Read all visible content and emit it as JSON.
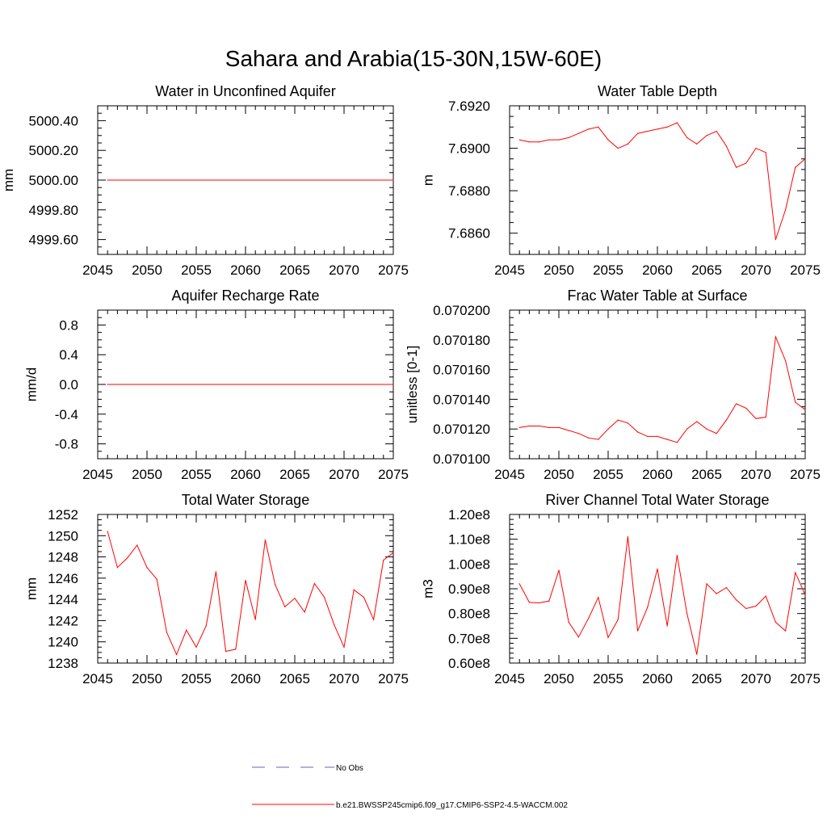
{
  "title": "Sahara and Arabia(15-30N,15W-60E)",
  "colors": {
    "model": "#ff0000",
    "obs": "#6666bb",
    "axis": "#000000"
  },
  "legend": {
    "obs_label": "No Obs",
    "model_label": "b.e21.BWSSP245cmip6.f09_g17.CMIP6-SSP2-4.5-WACCM.002"
  },
  "chart_data": [
    {
      "type": "line",
      "title": "Water in Unconfined Aquifer",
      "ylabel": "mm",
      "xlim": [
        2045,
        2075
      ],
      "ylim": [
        4999.5,
        5000.5
      ],
      "xticks": [
        2045,
        2050,
        2055,
        2060,
        2065,
        2070,
        2075
      ],
      "yticks": [
        4999.6,
        4999.8,
        5000.0,
        5000.2,
        5000.4
      ],
      "ytick_labels": [
        "4999.60",
        "4999.80",
        "5000.00",
        "5000.20",
        "5000.40"
      ],
      "x_minor_step": 1,
      "y_minor_step": 0.05,
      "x": [
        2046,
        2075
      ],
      "y": [
        5000.0,
        5000.0
      ]
    },
    {
      "type": "line",
      "title": "Water Table Depth",
      "ylabel": "m",
      "xlim": [
        2045,
        2075
      ],
      "ylim": [
        7.685,
        7.692
      ],
      "xticks": [
        2045,
        2050,
        2055,
        2060,
        2065,
        2070,
        2075
      ],
      "yticks": [
        7.686,
        7.688,
        7.69,
        7.692
      ],
      "ytick_labels": [
        "7.6860",
        "7.6880",
        "7.6900",
        "7.6920"
      ],
      "x_minor_step": 1,
      "y_minor_step": 0.0005,
      "x": [
        2046,
        2047,
        2048,
        2049,
        2050,
        2051,
        2052,
        2053,
        2054,
        2055,
        2056,
        2057,
        2058,
        2059,
        2060,
        2061,
        2062,
        2063,
        2064,
        2065,
        2066,
        2067,
        2068,
        2069,
        2070,
        2071,
        2072,
        2073,
        2074,
        2075
      ],
      "y": [
        7.6904,
        7.6903,
        7.6903,
        7.6904,
        7.6904,
        7.6905,
        7.6907,
        7.6909,
        7.691,
        7.6904,
        7.69,
        7.6902,
        7.6907,
        7.6908,
        7.6909,
        7.691,
        7.6912,
        7.6905,
        7.6902,
        7.6906,
        7.6908,
        7.6901,
        7.6891,
        7.6893,
        7.69,
        7.6898,
        7.6857,
        7.6871,
        7.6891,
        7.6895
      ]
    },
    {
      "type": "line",
      "title": "Aquifer Recharge Rate",
      "ylabel": "mm/d",
      "xlim": [
        2045,
        2075
      ],
      "ylim": [
        -1.0,
        1.0
      ],
      "xticks": [
        2045,
        2050,
        2055,
        2060,
        2065,
        2070,
        2075
      ],
      "yticks": [
        -0.8,
        -0.4,
        0.0,
        0.4,
        0.8
      ],
      "ytick_labels": [
        "-0.8",
        "-0.4",
        "0.0",
        "0.4",
        "0.8"
      ],
      "x_minor_step": 1,
      "y_minor_step": 0.1,
      "x": [
        2046,
        2075
      ],
      "y": [
        0.0,
        0.0
      ]
    },
    {
      "type": "line",
      "title": "Frac Water Table at Surface",
      "ylabel": "unitless [0-1]",
      "xlim": [
        2045,
        2075
      ],
      "ylim": [
        0.0701,
        0.0702
      ],
      "xticks": [
        2045,
        2050,
        2055,
        2060,
        2065,
        2070,
        2075
      ],
      "yticks": [
        0.0701,
        0.07012,
        0.07014,
        0.07016,
        0.07018,
        0.0702
      ],
      "ytick_labels": [
        "0.070100",
        "0.070120",
        "0.070140",
        "0.070160",
        "0.070180",
        "0.070200"
      ],
      "x_minor_step": 1,
      "y_minor_step": 5e-06,
      "x": [
        2046,
        2047,
        2048,
        2049,
        2050,
        2051,
        2052,
        2053,
        2054,
        2055,
        2056,
        2057,
        2058,
        2059,
        2060,
        2061,
        2062,
        2063,
        2064,
        2065,
        2066,
        2067,
        2068,
        2069,
        2070,
        2071,
        2072,
        2073,
        2074,
        2075
      ],
      "y": [
        0.070121,
        0.070122,
        0.070122,
        0.070121,
        0.070121,
        0.070119,
        0.070117,
        0.070114,
        0.070113,
        0.07012,
        0.070126,
        0.070124,
        0.070118,
        0.070115,
        0.070115,
        0.070113,
        0.070111,
        0.07012,
        0.070125,
        0.07012,
        0.070117,
        0.070126,
        0.070137,
        0.070134,
        0.070127,
        0.070128,
        0.070182,
        0.070166,
        0.070138,
        0.070133
      ]
    },
    {
      "type": "line",
      "title": "Total Water Storage",
      "ylabel": "mm",
      "xlim": [
        2045,
        2075
      ],
      "ylim": [
        1238,
        1252
      ],
      "xticks": [
        2045,
        2050,
        2055,
        2060,
        2065,
        2070,
        2075
      ],
      "yticks": [
        1238,
        1240,
        1242,
        1244,
        1246,
        1248,
        1250,
        1252
      ],
      "ytick_labels": [
        "1238",
        "1240",
        "1242",
        "1244",
        "1246",
        "1248",
        "1250",
        "1252"
      ],
      "x_minor_step": 1,
      "y_minor_step": 0.5,
      "x": [
        2046,
        2047,
        2048,
        2049,
        2050,
        2051,
        2052,
        2053,
        2054,
        2055,
        2056,
        2057,
        2058,
        2059,
        2060,
        2061,
        2062,
        2063,
        2064,
        2065,
        2066,
        2067,
        2068,
        2069,
        2070,
        2071,
        2072,
        2073,
        2074,
        2075
      ],
      "y": [
        1250.4,
        1247.0,
        1247.9,
        1249.1,
        1247.0,
        1245.9,
        1240.9,
        1238.8,
        1241.1,
        1239.5,
        1241.5,
        1246.6,
        1239.1,
        1239.3,
        1245.8,
        1242.1,
        1249.6,
        1245.4,
        1243.3,
        1244.1,
        1242.8,
        1245.5,
        1244.2,
        1241.6,
        1239.5,
        1244.9,
        1244.2,
        1242.1,
        1247.7,
        1248.4
      ]
    },
    {
      "type": "line",
      "title": "River Channel Total Water Storage",
      "ylabel": "m3",
      "xlim": [
        2045,
        2075
      ],
      "ylim": [
        60000000,
        120000000
      ],
      "xticks": [
        2045,
        2050,
        2055,
        2060,
        2065,
        2070,
        2075
      ],
      "yticks": [
        60000000,
        70000000,
        80000000,
        90000000,
        100000000,
        110000000,
        120000000
      ],
      "ytick_labels": [
        "0.60e8",
        "0.70e8",
        "0.80e8",
        "0.90e8",
        "1.00e8",
        "1.10e8",
        "1.20e8"
      ],
      "x_minor_step": 1,
      "y_minor_step": 2000000,
      "x": [
        2046,
        2047,
        2048,
        2049,
        2050,
        2051,
        2052,
        2053,
        2054,
        2055,
        2056,
        2057,
        2058,
        2059,
        2060,
        2061,
        2062,
        2063,
        2064,
        2065,
        2066,
        2067,
        2068,
        2069,
        2070,
        2071,
        2072,
        2073,
        2074,
        2075
      ],
      "y": [
        92000000,
        84500000,
        84300000,
        85000000,
        97500000,
        76500000,
        70500000,
        78000000,
        86500000,
        70300000,
        77500000,
        111000000,
        73000000,
        82500000,
        98000000,
        75000000,
        103500000,
        80000000,
        63500000,
        92000000,
        88000000,
        90500000,
        85500000,
        82000000,
        83000000,
        87000000,
        76500000,
        73000000,
        96500000,
        87500000
      ]
    }
  ]
}
